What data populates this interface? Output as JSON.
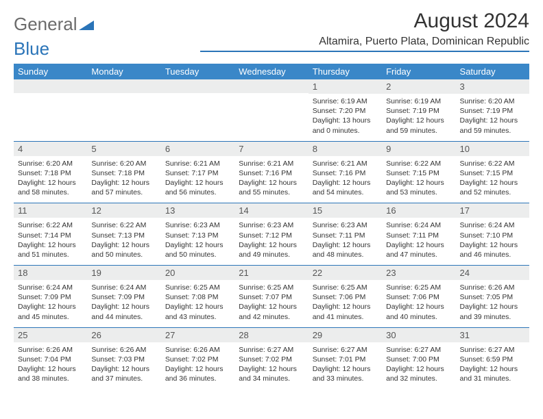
{
  "logo": {
    "text1": "General",
    "text2": "Blue"
  },
  "title": {
    "month": "August 2024",
    "location": "Altamira, Puerto Plata, Dominican Republic"
  },
  "colors": {
    "header_bg": "#3a87c8",
    "rule": "#2a74b8",
    "daynum_bg": "#eceded",
    "text": "#333333"
  },
  "day_labels": [
    "Sunday",
    "Monday",
    "Tuesday",
    "Wednesday",
    "Thursday",
    "Friday",
    "Saturday"
  ],
  "weeks": [
    [
      null,
      null,
      null,
      null,
      {
        "n": "1",
        "sr": "Sunrise: 6:19 AM",
        "ss": "Sunset: 7:20 PM",
        "dl": "Daylight: 13 hours and 0 minutes."
      },
      {
        "n": "2",
        "sr": "Sunrise: 6:19 AM",
        "ss": "Sunset: 7:19 PM",
        "dl": "Daylight: 12 hours and 59 minutes."
      },
      {
        "n": "3",
        "sr": "Sunrise: 6:20 AM",
        "ss": "Sunset: 7:19 PM",
        "dl": "Daylight: 12 hours and 59 minutes."
      }
    ],
    [
      {
        "n": "4",
        "sr": "Sunrise: 6:20 AM",
        "ss": "Sunset: 7:18 PM",
        "dl": "Daylight: 12 hours and 58 minutes."
      },
      {
        "n": "5",
        "sr": "Sunrise: 6:20 AM",
        "ss": "Sunset: 7:18 PM",
        "dl": "Daylight: 12 hours and 57 minutes."
      },
      {
        "n": "6",
        "sr": "Sunrise: 6:21 AM",
        "ss": "Sunset: 7:17 PM",
        "dl": "Daylight: 12 hours and 56 minutes."
      },
      {
        "n": "7",
        "sr": "Sunrise: 6:21 AM",
        "ss": "Sunset: 7:16 PM",
        "dl": "Daylight: 12 hours and 55 minutes."
      },
      {
        "n": "8",
        "sr": "Sunrise: 6:21 AM",
        "ss": "Sunset: 7:16 PM",
        "dl": "Daylight: 12 hours and 54 minutes."
      },
      {
        "n": "9",
        "sr": "Sunrise: 6:22 AM",
        "ss": "Sunset: 7:15 PM",
        "dl": "Daylight: 12 hours and 53 minutes."
      },
      {
        "n": "10",
        "sr": "Sunrise: 6:22 AM",
        "ss": "Sunset: 7:15 PM",
        "dl": "Daylight: 12 hours and 52 minutes."
      }
    ],
    [
      {
        "n": "11",
        "sr": "Sunrise: 6:22 AM",
        "ss": "Sunset: 7:14 PM",
        "dl": "Daylight: 12 hours and 51 minutes."
      },
      {
        "n": "12",
        "sr": "Sunrise: 6:22 AM",
        "ss": "Sunset: 7:13 PM",
        "dl": "Daylight: 12 hours and 50 minutes."
      },
      {
        "n": "13",
        "sr": "Sunrise: 6:23 AM",
        "ss": "Sunset: 7:13 PM",
        "dl": "Daylight: 12 hours and 50 minutes."
      },
      {
        "n": "14",
        "sr": "Sunrise: 6:23 AM",
        "ss": "Sunset: 7:12 PM",
        "dl": "Daylight: 12 hours and 49 minutes."
      },
      {
        "n": "15",
        "sr": "Sunrise: 6:23 AM",
        "ss": "Sunset: 7:11 PM",
        "dl": "Daylight: 12 hours and 48 minutes."
      },
      {
        "n": "16",
        "sr": "Sunrise: 6:24 AM",
        "ss": "Sunset: 7:11 PM",
        "dl": "Daylight: 12 hours and 47 minutes."
      },
      {
        "n": "17",
        "sr": "Sunrise: 6:24 AM",
        "ss": "Sunset: 7:10 PM",
        "dl": "Daylight: 12 hours and 46 minutes."
      }
    ],
    [
      {
        "n": "18",
        "sr": "Sunrise: 6:24 AM",
        "ss": "Sunset: 7:09 PM",
        "dl": "Daylight: 12 hours and 45 minutes."
      },
      {
        "n": "19",
        "sr": "Sunrise: 6:24 AM",
        "ss": "Sunset: 7:09 PM",
        "dl": "Daylight: 12 hours and 44 minutes."
      },
      {
        "n": "20",
        "sr": "Sunrise: 6:25 AM",
        "ss": "Sunset: 7:08 PM",
        "dl": "Daylight: 12 hours and 43 minutes."
      },
      {
        "n": "21",
        "sr": "Sunrise: 6:25 AM",
        "ss": "Sunset: 7:07 PM",
        "dl": "Daylight: 12 hours and 42 minutes."
      },
      {
        "n": "22",
        "sr": "Sunrise: 6:25 AM",
        "ss": "Sunset: 7:06 PM",
        "dl": "Daylight: 12 hours and 41 minutes."
      },
      {
        "n": "23",
        "sr": "Sunrise: 6:25 AM",
        "ss": "Sunset: 7:06 PM",
        "dl": "Daylight: 12 hours and 40 minutes."
      },
      {
        "n": "24",
        "sr": "Sunrise: 6:26 AM",
        "ss": "Sunset: 7:05 PM",
        "dl": "Daylight: 12 hours and 39 minutes."
      }
    ],
    [
      {
        "n": "25",
        "sr": "Sunrise: 6:26 AM",
        "ss": "Sunset: 7:04 PM",
        "dl": "Daylight: 12 hours and 38 minutes."
      },
      {
        "n": "26",
        "sr": "Sunrise: 6:26 AM",
        "ss": "Sunset: 7:03 PM",
        "dl": "Daylight: 12 hours and 37 minutes."
      },
      {
        "n": "27",
        "sr": "Sunrise: 6:26 AM",
        "ss": "Sunset: 7:02 PM",
        "dl": "Daylight: 12 hours and 36 minutes."
      },
      {
        "n": "28",
        "sr": "Sunrise: 6:27 AM",
        "ss": "Sunset: 7:02 PM",
        "dl": "Daylight: 12 hours and 34 minutes."
      },
      {
        "n": "29",
        "sr": "Sunrise: 6:27 AM",
        "ss": "Sunset: 7:01 PM",
        "dl": "Daylight: 12 hours and 33 minutes."
      },
      {
        "n": "30",
        "sr": "Sunrise: 6:27 AM",
        "ss": "Sunset: 7:00 PM",
        "dl": "Daylight: 12 hours and 32 minutes."
      },
      {
        "n": "31",
        "sr": "Sunrise: 6:27 AM",
        "ss": "Sunset: 6:59 PM",
        "dl": "Daylight: 12 hours and 31 minutes."
      }
    ]
  ]
}
